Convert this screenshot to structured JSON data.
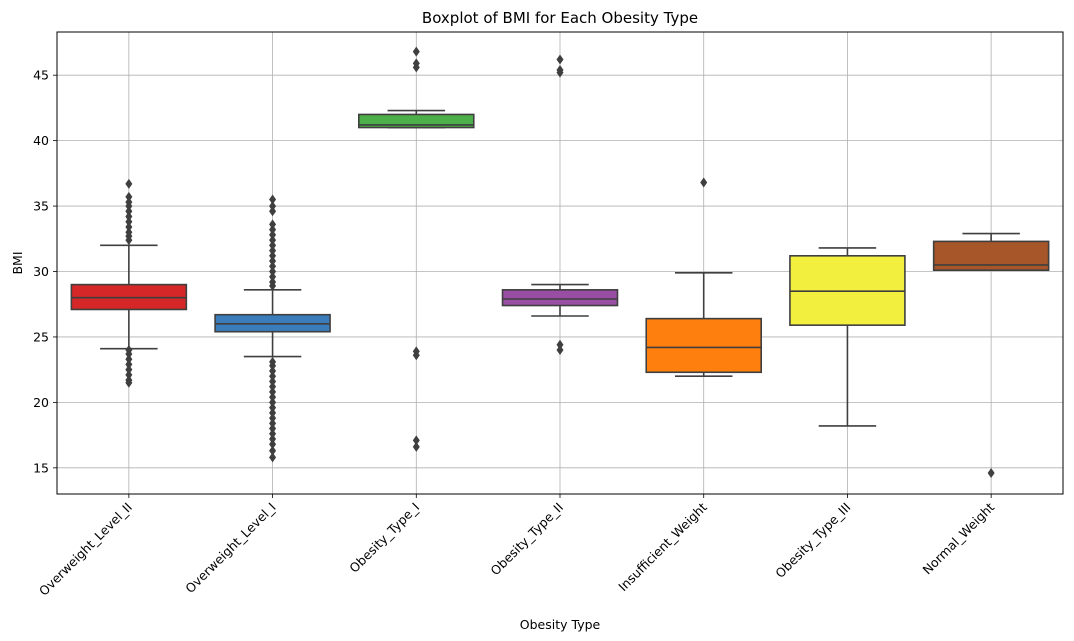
{
  "chart_data": {
    "type": "box",
    "title": "Boxplot of BMI for Each Obesity Type",
    "xlabel": "Obesity Type",
    "ylabel": "BMI",
    "ylim": [
      13,
      48.3
    ],
    "yticks": [
      15,
      20,
      25,
      30,
      35,
      40,
      45
    ],
    "grid": true,
    "x_tick_rotation": 45,
    "boxes": [
      {
        "category": "Overweight_Level_II",
        "color": "#d62728",
        "whisker_low": 24.1,
        "q1": 27.1,
        "median": 28.0,
        "q3": 29.0,
        "whisker_high": 32.0,
        "outliers": [
          21.5,
          21.7,
          22.1,
          22.5,
          22.9,
          23.3,
          23.7,
          24.0,
          32.4,
          32.7,
          33.0,
          33.4,
          33.8,
          34.2,
          34.6,
          35.0,
          35.3,
          35.7,
          36.7
        ]
      },
      {
        "category": "Overweight_Level_I",
        "color": "#3b7dba",
        "whisker_low": 23.5,
        "q1": 25.4,
        "median": 26.0,
        "q3": 26.7,
        "whisker_high": 28.6,
        "outliers": [
          15.8,
          16.3,
          16.8,
          17.2,
          17.6,
          18.0,
          18.4,
          18.8,
          19.2,
          19.6,
          20.0,
          20.4,
          20.8,
          21.2,
          21.6,
          22.0,
          22.4,
          22.8,
          23.1,
          28.9,
          29.2,
          29.6,
          30.0,
          30.4,
          30.8,
          31.2,
          31.6,
          32.0,
          32.4,
          32.8,
          33.2,
          33.6,
          34.6,
          35.0,
          35.5
        ]
      },
      {
        "category": "Obesity_Type_I",
        "color": "#4daf4a",
        "whisker_low": 41.0,
        "q1": 41.0,
        "median": 41.2,
        "q3": 42.0,
        "whisker_high": 42.3,
        "outliers": [
          16.6,
          17.1,
          23.6,
          23.9,
          45.6,
          45.9,
          46.8
        ]
      },
      {
        "category": "Obesity_Type_II",
        "color": "#984ea3",
        "whisker_low": 26.6,
        "q1": 27.4,
        "median": 27.9,
        "q3": 28.6,
        "whisker_high": 29.0,
        "outliers": [
          24.0,
          24.4,
          45.2,
          45.4,
          46.2
        ]
      },
      {
        "category": "Insufficient_Weight",
        "color": "#ff7f0e",
        "whisker_low": 22.0,
        "q1": 22.3,
        "median": 24.2,
        "q3": 26.4,
        "whisker_high": 29.9,
        "outliers": [
          36.8
        ]
      },
      {
        "category": "Obesity_Type_III",
        "color": "#f2ef3f",
        "whisker_low": 18.2,
        "q1": 25.9,
        "median": 28.5,
        "q3": 31.2,
        "whisker_high": 31.8,
        "outliers": []
      },
      {
        "category": "Normal_Weight",
        "color": "#a65628",
        "whisker_low": 30.1,
        "q1": 30.1,
        "median": 30.5,
        "q3": 32.3,
        "whisker_high": 32.9,
        "outliers": [
          14.6
        ]
      }
    ]
  }
}
